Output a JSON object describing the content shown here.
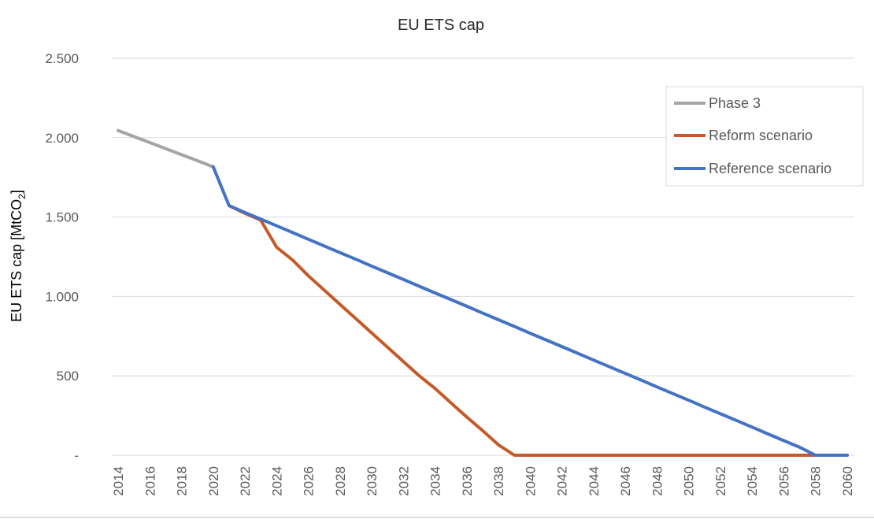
{
  "chart_data": {
    "type": "line",
    "title": "EU ETS cap",
    "ylabel": "EU ETS cap [MtCO",
    "ylabel_sub": "2",
    "ylabel_close": "]",
    "ylim": [
      0,
      2500
    ],
    "xlim": [
      2014,
      2060
    ],
    "yticks": [
      {
        "value": 0,
        "label": "-"
      },
      {
        "value": 500,
        "label": "500"
      },
      {
        "value": 1000,
        "label": "1.000"
      },
      {
        "value": 1500,
        "label": "1.500"
      },
      {
        "value": 2000,
        "label": "2.000"
      },
      {
        "value": 2500,
        "label": "2.500"
      }
    ],
    "xticks": [
      2014,
      2016,
      2018,
      2020,
      2022,
      2024,
      2026,
      2028,
      2030,
      2032,
      2034,
      2036,
      2038,
      2040,
      2042,
      2044,
      2046,
      2048,
      2050,
      2052,
      2054,
      2056,
      2058,
      2060
    ],
    "grid": true,
    "legend_position": "top-right",
    "series": [
      {
        "name": "Phase 3",
        "color": "#a5a5a5",
        "points": [
          [
            2014,
            2045
          ],
          [
            2015,
            2007
          ],
          [
            2016,
            1969
          ],
          [
            2017,
            1931
          ],
          [
            2018,
            1893
          ],
          [
            2019,
            1855
          ],
          [
            2020,
            1816
          ]
        ]
      },
      {
        "name": "Reform scenario",
        "color": "#c55a28",
        "points": [
          [
            2021,
            1572
          ],
          [
            2022,
            1524
          ],
          [
            2023,
            1480
          ],
          [
            2024,
            1310
          ],
          [
            2025,
            1230
          ],
          [
            2026,
            1130
          ],
          [
            2027,
            1040
          ],
          [
            2028,
            950
          ],
          [
            2029,
            860
          ],
          [
            2030,
            770
          ],
          [
            2031,
            680
          ],
          [
            2032,
            590
          ],
          [
            2033,
            500
          ],
          [
            2034,
            420
          ],
          [
            2035,
            330
          ],
          [
            2036,
            240
          ],
          [
            2037,
            155
          ],
          [
            2038,
            65
          ],
          [
            2039,
            0
          ],
          [
            2060,
            0
          ]
        ]
      },
      {
        "name": "Reference scenario",
        "color": "#4472c4",
        "points": [
          [
            2020,
            1816
          ],
          [
            2021,
            1572
          ],
          [
            2022,
            1529
          ],
          [
            2023,
            1487
          ],
          [
            2024,
            1445
          ],
          [
            2025,
            1403
          ],
          [
            2026,
            1360
          ],
          [
            2027,
            1318
          ],
          [
            2028,
            1276
          ],
          [
            2029,
            1234
          ],
          [
            2030,
            1191
          ],
          [
            2031,
            1149
          ],
          [
            2032,
            1107
          ],
          [
            2033,
            1064
          ],
          [
            2034,
            1022
          ],
          [
            2035,
            980
          ],
          [
            2036,
            938
          ],
          [
            2037,
            895
          ],
          [
            2038,
            853
          ],
          [
            2039,
            811
          ],
          [
            2040,
            768
          ],
          [
            2041,
            726
          ],
          [
            2042,
            684
          ],
          [
            2043,
            642
          ],
          [
            2044,
            599
          ],
          [
            2045,
            557
          ],
          [
            2046,
            515
          ],
          [
            2047,
            473
          ],
          [
            2048,
            430
          ],
          [
            2049,
            388
          ],
          [
            2050,
            346
          ],
          [
            2051,
            303
          ],
          [
            2052,
            261
          ],
          [
            2053,
            219
          ],
          [
            2054,
            177
          ],
          [
            2055,
            134
          ],
          [
            2056,
            92
          ],
          [
            2057,
            50
          ],
          [
            2058,
            0
          ],
          [
            2060,
            0
          ]
        ]
      }
    ]
  }
}
